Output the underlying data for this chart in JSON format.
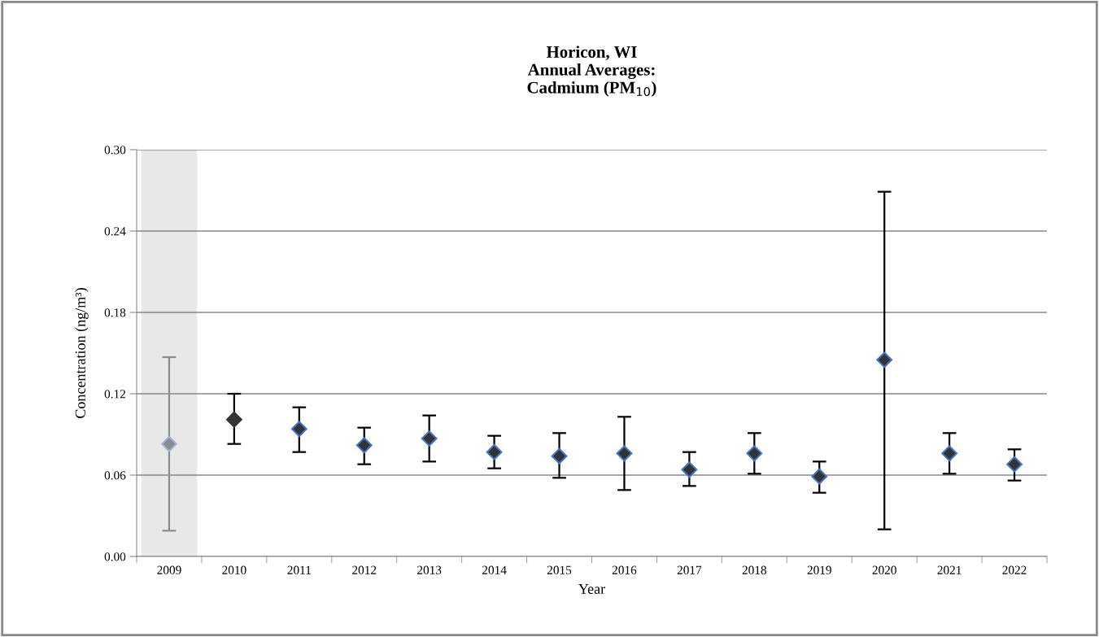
{
  "chart_data": {
    "type": "scatter",
    "title": "Horicon, WI\nAnnual Averages:\nCadmium (PM$_{10}$)",
    "xlabel": "Year",
    "ylabel": "Concentration (ng/m³)",
    "categories": [
      "2009",
      "2010",
      "2011",
      "2012",
      "2013",
      "2014",
      "2015",
      "2016",
      "2017",
      "2018",
      "2019",
      "2020",
      "2021",
      "2022"
    ],
    "series": [
      {
        "color": "#8c8c8c",
        "values": [
          0.083,
          null,
          null,
          null,
          null,
          null,
          null,
          null,
          null,
          null,
          null,
          null,
          null,
          null
        ],
        "errors": [
          [
            0.019,
            0.147
          ],
          null,
          null,
          null,
          null,
          null,
          null,
          null,
          null,
          null,
          null,
          null,
          null,
          null
        ]
      },
      {
        "color": "#333333",
        "values": [
          null,
          0.101,
          0.094,
          0.082,
          0.087,
          0.077,
          0.074,
          0.076,
          0.064,
          0.076,
          0.059,
          0.145,
          0.076,
          0.068
        ],
        "errors": [
          null,
          [
            0.083,
            0.12
          ],
          [
            0.077,
            0.11
          ],
          [
            0.068,
            0.095
          ],
          [
            0.07,
            0.104
          ],
          [
            0.065,
            0.089
          ],
          [
            0.058,
            0.091
          ],
          [
            0.049,
            0.103
          ],
          [
            0.052,
            0.077
          ],
          [
            0.061,
            0.091
          ],
          [
            0.047,
            0.07
          ],
          [
            0.02,
            0.269
          ],
          [
            0.061,
            0.091
          ],
          [
            0.056,
            0.079
          ]
        ]
      }
    ],
    "bands": [
      {
        "axis": "x",
        "from": "2009",
        "to": "2009",
        "color": "#e8e8e8"
      }
    ],
    "ylim": [
      0,
      0.3
    ],
    "yticks": [
      {
        "value": 0,
        "label": "0.00"
      },
      {
        "value": 0.06,
        "label": "0.06"
      },
      {
        "value": 0.12,
        "label": "0.12"
      },
      {
        "value": 0.18,
        "label": "0.18"
      },
      {
        "value": 0.24,
        "label": "0.24"
      },
      {
        "value": 0.3,
        "label": "0.30"
      }
    ],
    "grid": "y",
    "marker": "diamond",
    "legend": false
  }
}
